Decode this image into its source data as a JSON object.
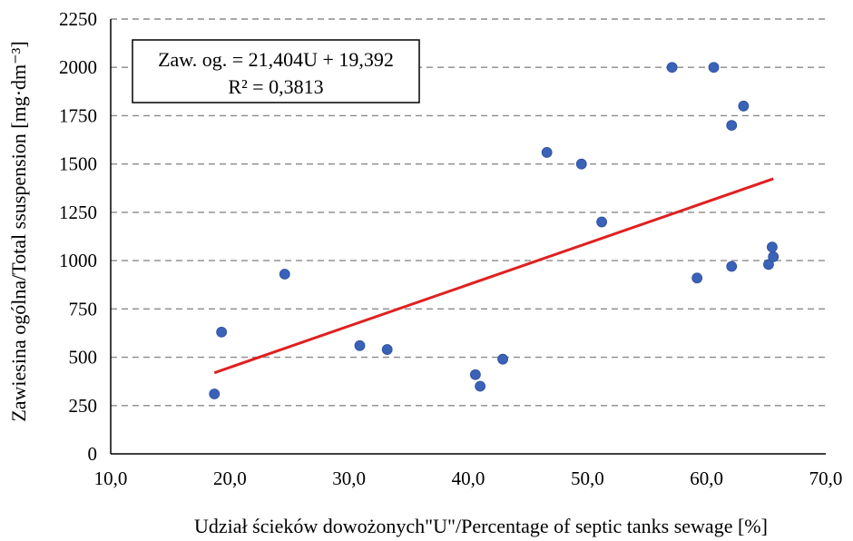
{
  "chart_data": {
    "type": "scatter",
    "xlabel": "Udział ścieków dowożonych\"U\"/Percentage of septic tanks sewage  [%]",
    "ylabel": "Zawiesina ogólna/Total ssuspension [mg·dm⁻³]",
    "xlim": [
      10,
      70
    ],
    "ylim": [
      0,
      2250
    ],
    "x_ticks": [
      "10,0",
      "20,0",
      "30,0",
      "40,0",
      "50,0",
      "60,0",
      "70,0"
    ],
    "y_ticks": [
      "0",
      "250",
      "500",
      "750",
      "1000",
      "1250",
      "1500",
      "1750",
      "2000",
      "2250"
    ],
    "grid": "horizontal dashed",
    "colors": {
      "points": "#3a62b8",
      "trendline": "#e02020"
    },
    "points": [
      {
        "x": 18.7,
        "y": 310
      },
      {
        "x": 19.3,
        "y": 630
      },
      {
        "x": 24.6,
        "y": 930
      },
      {
        "x": 30.9,
        "y": 560
      },
      {
        "x": 33.2,
        "y": 540
      },
      {
        "x": 40.6,
        "y": 410
      },
      {
        "x": 41.0,
        "y": 350
      },
      {
        "x": 42.9,
        "y": 490
      },
      {
        "x": 46.6,
        "y": 1560
      },
      {
        "x": 49.5,
        "y": 1500
      },
      {
        "x": 51.2,
        "y": 1200
      },
      {
        "x": 57.1,
        "y": 2000
      },
      {
        "x": 59.2,
        "y": 910
      },
      {
        "x": 60.6,
        "y": 2000
      },
      {
        "x": 62.1,
        "y": 1700
      },
      {
        "x": 62.1,
        "y": 970
      },
      {
        "x": 63.1,
        "y": 1800
      },
      {
        "x": 65.2,
        "y": 980
      },
      {
        "x": 65.5,
        "y": 1070
      },
      {
        "x": 65.6,
        "y": 1020
      }
    ],
    "trendline": {
      "type": "linear",
      "slope": 21.404,
      "intercept": 19.392,
      "x_range": [
        18.7,
        65.6
      ],
      "equation_label": "Zaw. og. = 21,404U + 19,392",
      "r2_label": "R² = 0,3813"
    }
  }
}
